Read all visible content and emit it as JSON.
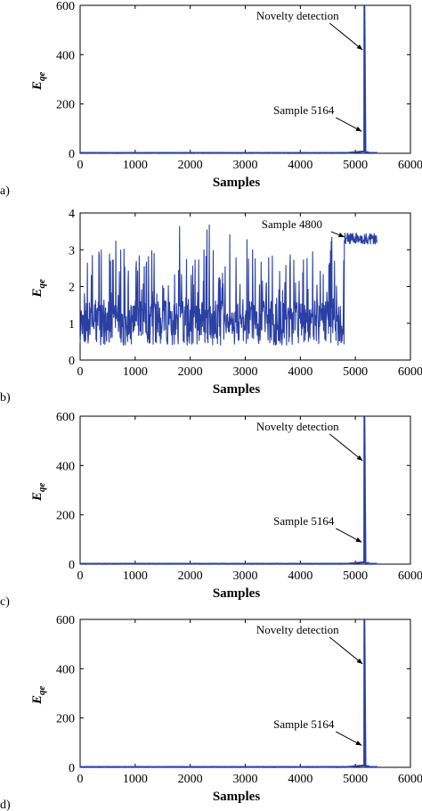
{
  "colors": {
    "series": "#2a3fa3",
    "axis": "#000000"
  },
  "chart_data": [
    {
      "type": "line",
      "panel_label": "a)",
      "xlabel": "Samples",
      "ylabel_main": "E",
      "ylabel_sub": "qe",
      "xlim": [
        0,
        6000
      ],
      "ylim": [
        0,
        600
      ],
      "xticks": [
        "0",
        "1000",
        "2000",
        "3000",
        "4000",
        "5000",
        "6000"
      ],
      "yticks": [
        "0",
        "200",
        "400",
        "600"
      ],
      "signal": {
        "kind": "spike",
        "n": 5400,
        "base": 1.5,
        "noise": 0.8,
        "spike_x": 5164,
        "spike_peak": 590,
        "spike_width": 20
      },
      "annotations": [
        {
          "text": "Novelty detection",
          "x": 5180,
          "y": 590
        },
        {
          "text": "Sample 5164",
          "x": 5164,
          "y": 60
        }
      ]
    },
    {
      "type": "line",
      "panel_label": "b)",
      "xlabel": "Samples",
      "ylabel_main": "E",
      "ylabel_sub": "qe",
      "xlim": [
        0,
        6000
      ],
      "ylim": [
        0,
        4
      ],
      "xticks": [
        "0",
        "1000",
        "2000",
        "3000",
        "4000",
        "5000",
        "6000"
      ],
      "yticks": [
        "0",
        "1",
        "2",
        "3",
        "4"
      ],
      "signal": {
        "kind": "noisy_step",
        "n": 5400,
        "step_x": 4800,
        "low_base": 0.4,
        "low_spread": 2.2,
        "high_level": 3.3,
        "high_spread": 0.15
      },
      "annotations": [
        {
          "text": "Sample 4800",
          "x": 4850,
          "y": 3.25
        }
      ]
    },
    {
      "type": "line",
      "panel_label": "c)",
      "xlabel": "Samples",
      "ylabel_main": "E",
      "ylabel_sub": "qe",
      "xlim": [
        0,
        6000
      ],
      "ylim": [
        0,
        600
      ],
      "xticks": [
        "0",
        "1000",
        "2000",
        "3000",
        "4000",
        "5000",
        "6000"
      ],
      "yticks": [
        "0",
        "200",
        "400",
        "600"
      ],
      "signal": {
        "kind": "spike",
        "n": 5400,
        "base": 1.5,
        "noise": 0.8,
        "spike_x": 5164,
        "spike_peak": 590,
        "spike_width": 20
      },
      "annotations": [
        {
          "text": "Novelty detection",
          "x": 5180,
          "y": 590
        },
        {
          "text": "Sample 5164",
          "x": 5164,
          "y": 60
        }
      ]
    },
    {
      "type": "line",
      "panel_label": "d)",
      "xlabel": "Samples",
      "ylabel_main": "E",
      "ylabel_sub": "qe",
      "xlim": [
        0,
        6000
      ],
      "ylim": [
        0,
        600
      ],
      "xticks": [
        "0",
        "1000",
        "2000",
        "3000",
        "4000",
        "5000",
        "6000"
      ],
      "yticks": [
        "0",
        "200",
        "400",
        "600"
      ],
      "signal": {
        "kind": "spike",
        "n": 5400,
        "base": 1.5,
        "noise": 0.8,
        "spike_x": 5164,
        "spike_peak": 590,
        "spike_width": 20
      },
      "annotations": [
        {
          "text": "Novelty detection",
          "x": 5180,
          "y": 590
        },
        {
          "text": "Sample 5164",
          "x": 5164,
          "y": 60
        }
      ]
    }
  ]
}
